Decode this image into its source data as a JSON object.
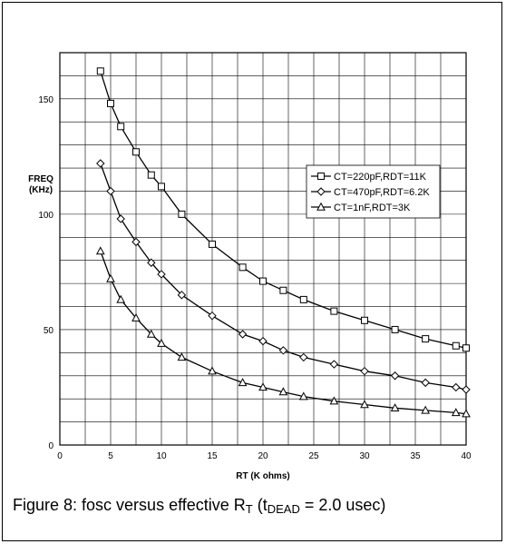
{
  "chart_data": {
    "type": "line",
    "xlabel": "RT (K ohms)",
    "ylabel_line1": "FREQ",
    "ylabel_line2": "(KHz)",
    "xlim": [
      0,
      40
    ],
    "ylim": [
      0,
      170
    ],
    "x_ticks": [
      0,
      5,
      10,
      15,
      20,
      25,
      30,
      35,
      40
    ],
    "y_ticks": [
      0,
      50,
      100,
      150
    ],
    "grid": true,
    "legend_position": "right",
    "series": [
      {
        "name": "CT=220pF,RDT=11K",
        "marker": "square",
        "x": [
          4,
          5,
          6,
          7.5,
          9,
          10,
          12,
          15,
          18,
          20,
          22,
          24,
          27,
          30,
          33,
          36,
          39,
          40
        ],
        "y": [
          162,
          148,
          138,
          127,
          117,
          112,
          100,
          87,
          77,
          71,
          67,
          63,
          58,
          54,
          50,
          46,
          43,
          42
        ]
      },
      {
        "name": "CT=470pF,RDT=6.2K",
        "marker": "diamond",
        "x": [
          4,
          5,
          6,
          7.5,
          9,
          10,
          12,
          15,
          18,
          20,
          22,
          24,
          27,
          30,
          33,
          36,
          39,
          40
        ],
        "y": [
          122,
          110,
          98,
          88,
          79,
          74,
          65,
          56,
          48,
          45,
          41,
          38,
          35,
          32,
          30,
          27,
          25,
          24
        ]
      },
      {
        "name": "CT=1nF,RDT=3K",
        "marker": "triangle",
        "x": [
          4,
          5,
          6,
          7.5,
          9,
          10,
          12,
          15,
          18,
          20,
          22,
          24,
          27,
          30,
          33,
          36,
          39,
          40
        ],
        "y": [
          84,
          72,
          63,
          55,
          48,
          44,
          38,
          32,
          27,
          25,
          23,
          21,
          19,
          17.5,
          16,
          15,
          14,
          13.5
        ]
      }
    ]
  },
  "caption": {
    "prefix": "Figure 8: fosc versus effective R",
    "sub1": "T",
    "middle": " (t",
    "sub2": "DEAD",
    "suffix": " = 2.0 usec)"
  }
}
